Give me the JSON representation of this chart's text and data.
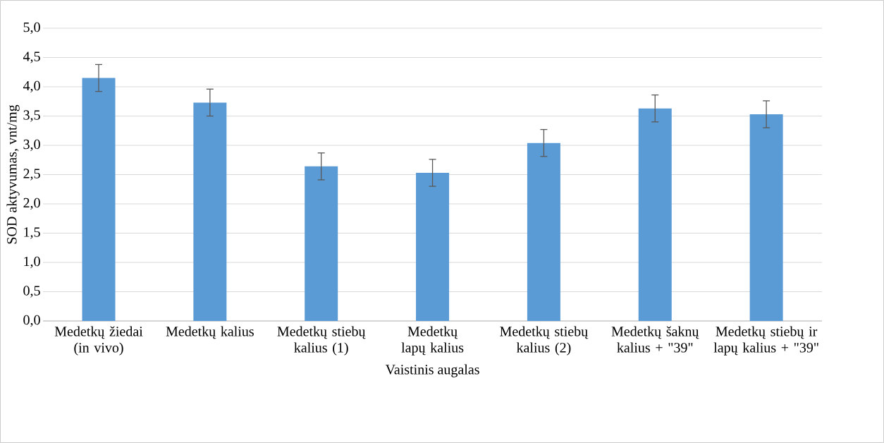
{
  "chart_data": {
    "type": "bar",
    "xlabel": "Vaistinis augalas",
    "ylabel": "SOD aktyvumas, vnt/mg",
    "categories": [
      "Medetkų žiedai (in vivo)",
      "Medetkų kalius",
      "Medetkų stiebų kalius (1)",
      "Medetkų lapų kalius",
      "Medetkų stiebų kalius (2)",
      "Medetkų šaknų kalius + \"39\"",
      "Medetkų stiebų ir lapų kalius + \"39\""
    ],
    "values": [
      4.15,
      3.73,
      2.64,
      2.53,
      3.04,
      3.63,
      3.53
    ],
    "errors": [
      0.23,
      0.23,
      0.23,
      0.23,
      0.23,
      0.23,
      0.23
    ],
    "color": "#5b9bd5",
    "ylim": [
      0,
      5
    ],
    "yticks": [
      {
        "value": 0,
        "label": "0,0"
      },
      {
        "value": 0.5,
        "label": "0,5"
      },
      {
        "value": 1,
        "label": "1,0"
      },
      {
        "value": 1.5,
        "label": "1,5"
      },
      {
        "value": 2,
        "label": "2,0"
      },
      {
        "value": 2.5,
        "label": "2,5"
      },
      {
        "value": 3,
        "label": "3,0"
      },
      {
        "value": 3.5,
        "label": "3,5"
      },
      {
        "value": 4,
        "label": "4,0"
      },
      {
        "value": 4.5,
        "label": "4,5"
      },
      {
        "value": 5,
        "label": "5,0"
      }
    ],
    "grid": "y"
  }
}
